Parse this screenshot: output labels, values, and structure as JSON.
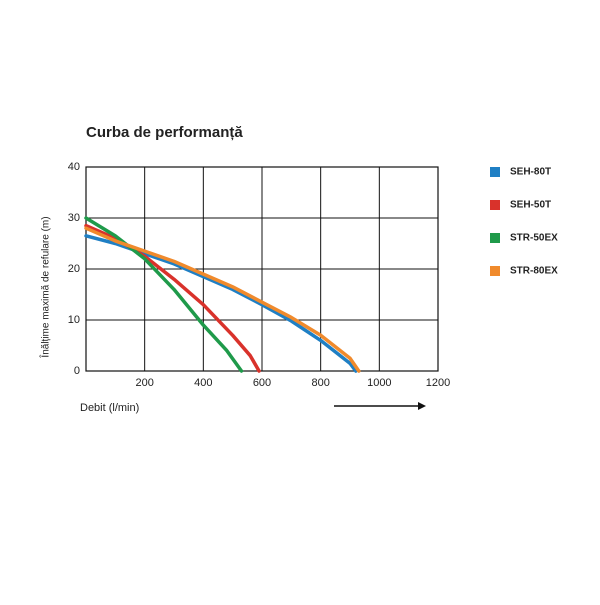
{
  "chart_data": {
    "type": "line",
    "title": "Curba de performanță",
    "x_label": "Debit (l/min)",
    "y_label": "Înălțime maximă de refulare (m)",
    "xlim": [
      0,
      1200
    ],
    "xticks": [
      200,
      400,
      600,
      800,
      1000,
      1200
    ],
    "ylim": [
      0,
      40
    ],
    "yticks": [
      0,
      10,
      20,
      30,
      40
    ],
    "grid": true,
    "legend": "right",
    "series": [
      {
        "name": "SEH-80T",
        "color": "#1f7fc4",
        "x": [
          0,
          100,
          200,
          300,
          400,
          500,
          600,
          700,
          800,
          900,
          920
        ],
        "values": [
          26.5,
          25,
          23,
          21,
          18.5,
          16,
          13,
          9.8,
          6,
          1.5,
          0
        ]
      },
      {
        "name": "SEH-50T",
        "color": "#d9322b",
        "x": [
          0,
          100,
          200,
          300,
          400,
          500,
          560,
          590
        ],
        "values": [
          28.5,
          26,
          22.5,
          18,
          13,
          7,
          3,
          0
        ]
      },
      {
        "name": "STR-50EX",
        "color": "#1f9a4a",
        "x": [
          0,
          100,
          200,
          300,
          400,
          480,
          530
        ],
        "values": [
          30,
          26.5,
          22,
          16,
          9,
          4,
          0
        ]
      },
      {
        "name": "STR-80EX",
        "color": "#f08a2c",
        "x": [
          0,
          100,
          200,
          300,
          400,
          500,
          600,
          700,
          800,
          900,
          930
        ],
        "values": [
          28,
          25.5,
          23.5,
          21.5,
          19,
          16.5,
          13.5,
          10.5,
          7,
          2.5,
          0
        ]
      }
    ]
  }
}
